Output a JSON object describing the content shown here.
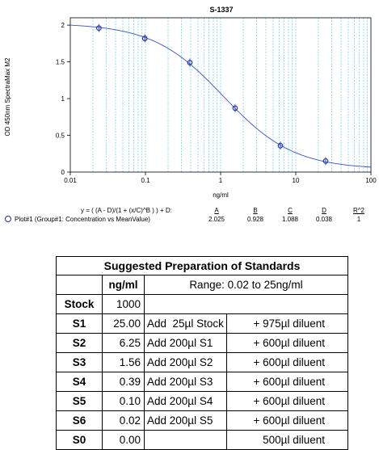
{
  "chart_data": {
    "type": "scatter",
    "title": "S-1337",
    "xlabel": "ng/ml",
    "ylabel": "OD 450nm SpectraMax M2",
    "x_scale": "log",
    "xlim": [
      0.01,
      100
    ],
    "ylim": [
      0,
      2.1
    ],
    "x_ticks": [
      "0.01",
      "0.1",
      "1",
      "10",
      "100"
    ],
    "y_ticks": [
      "0",
      "0.5",
      "1",
      "1.5",
      "2"
    ],
    "grid": "vertical-minor",
    "points": [
      {
        "x": 0.024,
        "y": 1.96
      },
      {
        "x": 0.098,
        "y": 1.82
      },
      {
        "x": 0.39,
        "y": 1.49
      },
      {
        "x": 1.56,
        "y": 0.87
      },
      {
        "x": 6.25,
        "y": 0.36
      },
      {
        "x": 25,
        "y": 0.15
      }
    ],
    "fit": {
      "A": 2.025,
      "B": 0.928,
      "C": 1.088,
      "D": 0.038
    },
    "colors": {
      "points": "#1a2ea8",
      "curve": "#3b4fd0",
      "grid": "#48c8dc"
    }
  },
  "legend": {
    "equation": "y = ( (A - D)/(1 + (x/C)^B ) ) + D:",
    "headers": [
      "A",
      "B",
      "C",
      "D",
      "R^2"
    ],
    "plot_label": "Plot#1 (Group#1: Concentration vs MeanValue)",
    "values": [
      "2.025",
      "0.928",
      "1.088",
      "0.038",
      "1"
    ]
  },
  "table": {
    "title": "Suggested Preparation of Standards",
    "unit_header": "ng/ml",
    "range_header": "Range: 0.02 to 25ng/ml",
    "rows": [
      {
        "label": "Stock",
        "conc": "1000",
        "step": "",
        "diluent": ""
      },
      {
        "label": "S1",
        "conc": "25.00",
        "step": "Add  25µl Stock",
        "diluent": "+ 975µl diluent"
      },
      {
        "label": "S2",
        "conc": "6.25",
        "step": "Add 200µl S1",
        "diluent": "+ 600µl diluent"
      },
      {
        "label": "S3",
        "conc": "1.56",
        "step": "Add 200µl S2",
        "diluent": "+ 600µl diluent"
      },
      {
        "label": "S4",
        "conc": "0.39",
        "step": "Add 200µl S3",
        "diluent": "+ 600µl diluent"
      },
      {
        "label": "S5",
        "conc": "0.10",
        "step": "Add 200µl S4",
        "diluent": "+ 600µl diluent"
      },
      {
        "label": "S6",
        "conc": "0.02",
        "step": "Add 200µl S5",
        "diluent": "+ 600µl diluent"
      },
      {
        "label": "S0",
        "conc": "0.00",
        "step": "",
        "diluent": "500µl diluent"
      }
    ]
  }
}
